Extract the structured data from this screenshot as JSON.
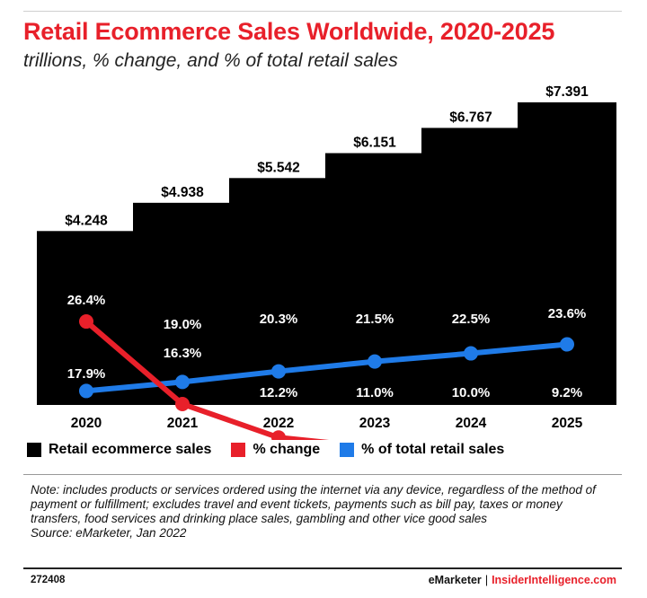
{
  "title": "Retail Ecommerce Sales Worldwide, 2020-2025",
  "subtitle": "trillions, % change, and % of total retail sales",
  "colors": {
    "bar": "#000000",
    "change": "#e8202a",
    "share": "#1f7be8",
    "title": "#e8202a"
  },
  "legend": [
    {
      "label": "Retail ecommerce sales",
      "color": "#000000"
    },
    {
      "label": "% change",
      "color": "#e8202a"
    },
    {
      "label": "% of total retail sales",
      "color": "#1f7be8"
    }
  ],
  "chart_data": {
    "type": "bar",
    "categories": [
      "2020",
      "2021",
      "2022",
      "2023",
      "2024",
      "2025"
    ],
    "series": [
      {
        "name": "Retail ecommerce sales",
        "type": "bar",
        "values": [
          4.248,
          4.938,
          5.542,
          6.151,
          6.767,
          7.391
        ],
        "labels": [
          "$4.248",
          "$4.938",
          "$5.542",
          "$6.151",
          "$6.767",
          "$7.391"
        ]
      },
      {
        "name": "% change",
        "type": "line",
        "values": [
          26.4,
          16.3,
          12.2,
          11.0,
          10.0,
          9.2
        ],
        "labels": [
          "26.4%",
          "16.3%",
          "12.2%",
          "11.0%",
          "10.0%",
          "9.2%"
        ]
      },
      {
        "name": "% of total retail sales",
        "type": "line",
        "values": [
          17.9,
          19.0,
          20.3,
          21.5,
          22.5,
          23.6
        ],
        "labels": [
          "17.9%",
          "19.0%",
          "20.3%",
          "21.5%",
          "22.5%",
          "23.6%"
        ]
      }
    ],
    "ylim": [
      0,
      7.391
    ],
    "grid": false,
    "legend_position": "bottom-left"
  },
  "note": "Note: includes products or services ordered using the internet via any device, regardless of the method of payment or fulfillment; excludes travel and event tickets, payments such as bill pay, taxes or money transfers, food services and drinking place sales, gambling and other vice good sales",
  "source": "Source: eMarketer, Jan 2022",
  "footer": {
    "id": "272408",
    "brand_left": "eMarketer",
    "separator": "|",
    "brand_right": "InsiderIntelligence.com"
  }
}
